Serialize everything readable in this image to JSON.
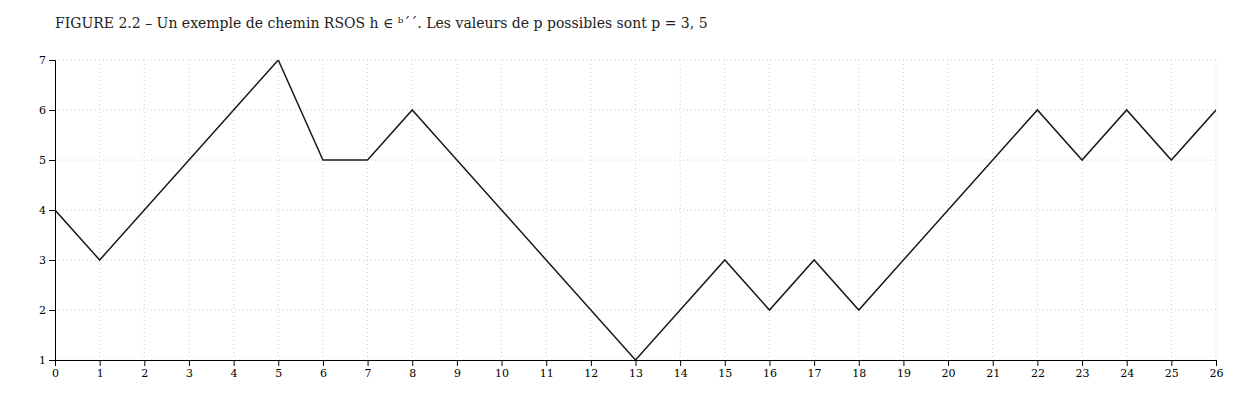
{
  "chart_data": {
    "type": "line",
    "title": "FIGURE 2.2 – Un exemple de chemin RSOS h ∈ ᵇ´´. Les valeurs de p possibles sont p = 3, 5",
    "x": [
      0,
      1,
      2,
      3,
      4,
      5,
      6,
      7,
      8,
      9,
      10,
      11,
      12,
      13,
      14,
      15,
      16,
      17,
      18,
      19,
      20,
      21,
      22,
      23,
      24,
      25,
      26
    ],
    "values": [
      4,
      3,
      4,
      5,
      6,
      7,
      5,
      5,
      6,
      5,
      4,
      3,
      2,
      1,
      2,
      3,
      2,
      3,
      2,
      3,
      4,
      5,
      6,
      5,
      6,
      5,
      6
    ],
    "color": "#1a1a1a",
    "xlim": [
      0,
      26
    ],
    "ylim": [
      1,
      7
    ],
    "xticks": [
      0,
      1,
      2,
      3,
      4,
      5,
      6,
      7,
      8,
      9,
      10,
      11,
      12,
      13,
      14,
      15,
      16,
      17,
      18,
      19,
      20,
      21,
      22,
      23,
      24,
      25,
      26
    ],
    "yticks": [
      1,
      2,
      3,
      4,
      5,
      6,
      7
    ],
    "grid": true
  }
}
